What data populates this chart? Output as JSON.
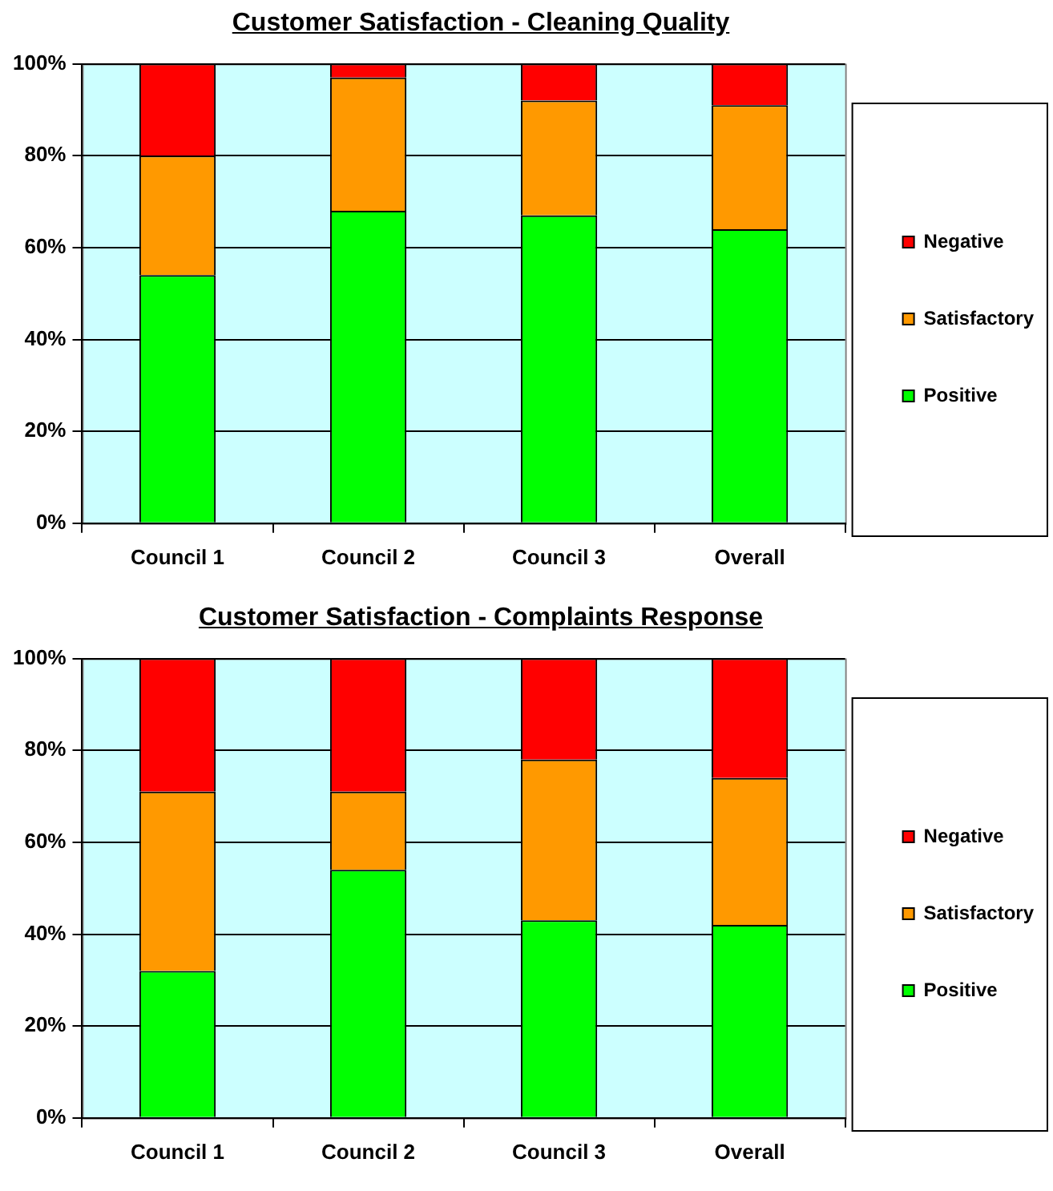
{
  "chart_data": [
    {
      "type": "bar",
      "title": "Customer Satisfaction - Cleaning Quality",
      "categories": [
        "Council 1",
        "Council 2",
        "Council 3",
        "Overall"
      ],
      "stacked": true,
      "series": [
        {
          "name": "Positive",
          "color": "#00ff00",
          "values": [
            54,
            68,
            67,
            64
          ]
        },
        {
          "name": "Satisfactory",
          "color": "#ff9900",
          "values": [
            26,
            29,
            25,
            27
          ]
        },
        {
          "name": "Negative",
          "color": "#ff0000",
          "values": [
            20,
            3,
            8,
            9
          ]
        }
      ],
      "ylim": [
        0,
        100
      ],
      "yticks": [
        {
          "value": 0,
          "label": "0%"
        },
        {
          "value": 20,
          "label": "20%"
        },
        {
          "value": 40,
          "label": "40%"
        },
        {
          "value": 60,
          "label": "60%"
        },
        {
          "value": 80,
          "label": "80%"
        },
        {
          "value": 100,
          "label": "100%"
        }
      ],
      "grid": "y",
      "legend": "right"
    },
    {
      "type": "bar",
      "title": "Customer Satisfaction - Complaints Response",
      "categories": [
        "Council 1",
        "Council 2",
        "Council 3",
        "Overall"
      ],
      "stacked": true,
      "series": [
        {
          "name": "Positive",
          "color": "#00ff00",
          "values": [
            32,
            54,
            43,
            42
          ]
        },
        {
          "name": "Satisfactory",
          "color": "#ff9900",
          "values": [
            39,
            17,
            35,
            32
          ]
        },
        {
          "name": "Negative",
          "color": "#ff0000",
          "values": [
            29,
            29,
            22,
            26
          ]
        }
      ],
      "ylim": [
        0,
        100
      ],
      "yticks": [
        {
          "value": 0,
          "label": "0%"
        },
        {
          "value": 20,
          "label": "20%"
        },
        {
          "value": 40,
          "label": "40%"
        },
        {
          "value": 60,
          "label": "60%"
        },
        {
          "value": 80,
          "label": "80%"
        },
        {
          "value": 100,
          "label": "100%"
        }
      ],
      "grid": "y",
      "legend": "right"
    }
  ]
}
